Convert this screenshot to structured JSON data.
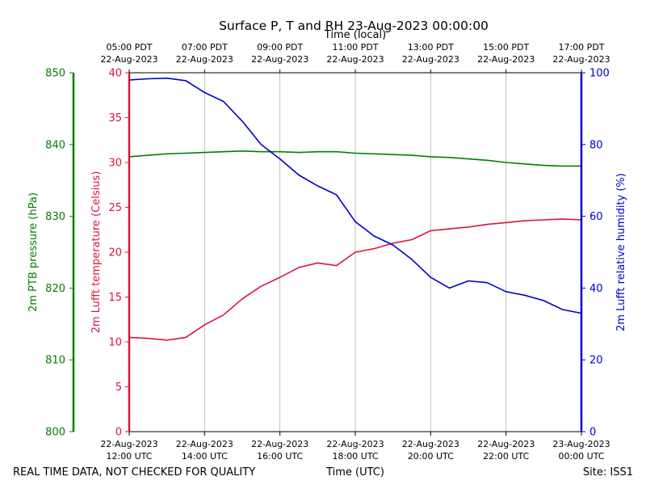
{
  "chart_data": {
    "type": "line",
    "title": "Surface P, T and RH 23-Aug-2023 00:00:00",
    "top_axis_label": "Time (local)",
    "xlabel": "Time (UTC)",
    "footer_left": "REAL TIME DATA, NOT CHECKED FOR QUALITY",
    "footer_right": "Site: ISS1",
    "x_range_hours_utc": [
      12,
      24
    ],
    "grid": "vertical",
    "ticks_bottom": [
      {
        "hour": 12,
        "line1": "22-Aug-2023",
        "line2": "12:00 UTC"
      },
      {
        "hour": 14,
        "line1": "22-Aug-2023",
        "line2": "14:00 UTC"
      },
      {
        "hour": 16,
        "line1": "22-Aug-2023",
        "line2": "16:00 UTC"
      },
      {
        "hour": 18,
        "line1": "22-Aug-2023",
        "line2": "18:00 UTC"
      },
      {
        "hour": 20,
        "line1": "22-Aug-2023",
        "line2": "20:00 UTC"
      },
      {
        "hour": 22,
        "line1": "22-Aug-2023",
        "line2": "22:00 UTC"
      },
      {
        "hour": 24,
        "line1": "23-Aug-2023",
        "line2": "00:00 UTC"
      }
    ],
    "ticks_top": [
      {
        "hour": 12,
        "line1": "05:00 PDT",
        "line2": "22-Aug-2023"
      },
      {
        "hour": 14,
        "line1": "07:00 PDT",
        "line2": "22-Aug-2023"
      },
      {
        "hour": 16,
        "line1": "09:00 PDT",
        "line2": "22-Aug-2023"
      },
      {
        "hour": 18,
        "line1": "11:00 PDT",
        "line2": "22-Aug-2023"
      },
      {
        "hour": 20,
        "line1": "13:00 PDT",
        "line2": "22-Aug-2023"
      },
      {
        "hour": 22,
        "line1": "15:00 PDT",
        "line2": "22-Aug-2023"
      },
      {
        "hour": 24,
        "line1": "17:00 PDT",
        "line2": "22-Aug-2023"
      }
    ],
    "axes": {
      "pressure": {
        "label": "2m PTB pressure (hPa)",
        "range": [
          800,
          850
        ],
        "ticks": [
          800,
          810,
          820,
          830,
          840,
          850
        ],
        "color": "#008000"
      },
      "temperature": {
        "label": "2m Lufft temperature (Celsius)",
        "range": [
          0,
          40
        ],
        "ticks": [
          0,
          5,
          10,
          15,
          20,
          25,
          30,
          35,
          40
        ],
        "color": "#dc143c"
      },
      "humidity": {
        "label": "2m Lufft relative humidity (%)",
        "range": [
          0,
          100
        ],
        "ticks": [
          0,
          20,
          40,
          60,
          80,
          100
        ],
        "color": "#0000cd"
      }
    },
    "series": [
      {
        "axis": "pressure",
        "color": "#008000",
        "x": [
          12.0,
          12.5,
          13.0,
          13.5,
          14.0,
          14.5,
          15.0,
          15.5,
          16.0,
          16.5,
          17.0,
          17.5,
          18.0,
          18.5,
          19.0,
          19.5,
          20.0,
          20.5,
          21.0,
          21.5,
          22.0,
          22.5,
          23.0,
          23.5,
          24.0
        ],
        "y": [
          838.3,
          838.5,
          838.7,
          838.8,
          838.9,
          839.0,
          839.1,
          839.0,
          839.0,
          838.9,
          839.0,
          839.0,
          838.8,
          838.7,
          838.6,
          838.5,
          838.3,
          838.2,
          838.0,
          837.8,
          837.5,
          837.3,
          837.1,
          837.0,
          837.0
        ]
      },
      {
        "axis": "temperature",
        "color": "#dc143c",
        "x": [
          12.0,
          12.5,
          13.0,
          13.5,
          14.0,
          14.5,
          15.0,
          15.5,
          16.0,
          16.5,
          17.0,
          17.5,
          18.0,
          18.5,
          19.0,
          19.5,
          20.0,
          20.5,
          21.0,
          21.5,
          22.0,
          22.5,
          23.0,
          23.5,
          24.0
        ],
        "y": [
          10.5,
          10.4,
          10.2,
          10.5,
          11.9,
          13.0,
          14.8,
          16.2,
          17.2,
          18.3,
          18.8,
          18.5,
          20.0,
          20.4,
          21.0,
          21.4,
          22.4,
          22.6,
          22.8,
          23.1,
          23.3,
          23.5,
          23.6,
          23.7,
          23.6
        ]
      },
      {
        "axis": "humidity",
        "color": "#0000cd",
        "x": [
          12.0,
          12.5,
          13.0,
          13.5,
          14.0,
          14.5,
          15.0,
          15.5,
          16.0,
          16.5,
          17.0,
          17.5,
          18.0,
          18.5,
          19.0,
          19.5,
          20.0,
          20.5,
          21.0,
          21.5,
          22.0,
          22.5,
          23.0,
          23.5,
          24.0
        ],
        "y": [
          98.0,
          98.3,
          98.5,
          97.8,
          94.5,
          92.0,
          86.5,
          80.0,
          76.0,
          71.5,
          68.5,
          66.0,
          58.5,
          54.5,
          52.0,
          48.0,
          43.0,
          40.0,
          42.0,
          41.5,
          39.0,
          38.0,
          36.5,
          34.0,
          33.0
        ]
      }
    ]
  }
}
